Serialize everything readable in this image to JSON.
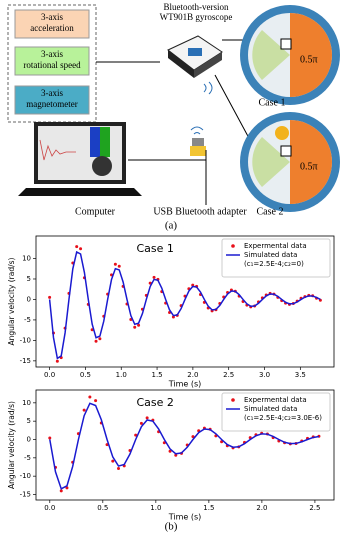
{
  "figure_a": {
    "sensors": [
      [
        "3-axis",
        "acceleration"
      ],
      [
        "3-axis",
        "rotational speed"
      ],
      [
        "3-axis",
        "magnetometer"
      ]
    ],
    "device_title": [
      "Bluetooth-version",
      "WT901B gyroscope"
    ],
    "angle_labels": [
      "0.5π",
      "0.5π"
    ],
    "case_labels": [
      "Case 1",
      "Case 2"
    ],
    "computer_label": "Computer",
    "adapter_label": "USB Bluetooth adapter",
    "caption": "(a)"
  },
  "caption_b": "(b)",
  "chart_data": [
    {
      "type": "line",
      "title": "Case 1",
      "x_label": "Time (s)",
      "y_label": "Angular velocity (rad/s)",
      "x": [
        0,
        0.054,
        0.108,
        0.162,
        0.216,
        0.27,
        0.324,
        0.378,
        0.432,
        0.486,
        0.54,
        0.594,
        0.648,
        0.702,
        0.756,
        0.81,
        0.864,
        0.918,
        0.972,
        1.026,
        1.08,
        1.134,
        1.188,
        1.242,
        1.296,
        1.35,
        1.404,
        1.458,
        1.512,
        1.566,
        1.62,
        1.674,
        1.728,
        1.782,
        1.836,
        1.89,
        1.944,
        1.998,
        2.052,
        2.106,
        2.16,
        2.214,
        2.268,
        2.322,
        2.376,
        2.43,
        2.484,
        2.538,
        2.592,
        2.646,
        2.7,
        2.754,
        2.808,
        2.862,
        2.916,
        2.97,
        3.024,
        3.078,
        3.132,
        3.186,
        3.24,
        3.294,
        3.348,
        3.402,
        3.456,
        3.51,
        3.564,
        3.618,
        3.672,
        3.726,
        3.78
      ],
      "series": [
        {
          "name": "Expermental data",
          "color": "#e8101a",
          "style": "points",
          "values": [
            0.5,
            -8.2,
            -15.1,
            -14.2,
            -7.0,
            1.5,
            8.9,
            12.9,
            12.4,
            5.3,
            -1.2,
            -7.4,
            -10.2,
            -9.6,
            -4.1,
            1.3,
            6.0,
            8.6,
            8.1,
            3.2,
            -1.1,
            -4.9,
            -6.8,
            -6.3,
            -2.4,
            1.0,
            4.0,
            5.4,
            4.9,
            1.9,
            -0.9,
            -3.2,
            -4.3,
            -3.9,
            -1.5,
            0.8,
            2.6,
            3.5,
            3.2,
            1.2,
            -0.7,
            -2.1,
            -2.8,
            -2.5,
            -1.0,
            0.6,
            1.7,
            2.3,
            2.0,
            0.8,
            -0.5,
            -1.4,
            -1.8,
            -1.6,
            -0.6,
            0.4,
            1.1,
            1.5,
            1.3,
            0.5,
            -0.3,
            -0.9,
            -1.2,
            -1.0,
            -0.4,
            0.3,
            0.7,
            1.0,
            0.9,
            0.3,
            -0.2
          ]
        },
        {
          "name": "Simulated data",
          "note": "(c₁=2.5E-4;c₂=0)",
          "color": "#1a1ad0",
          "style": "line",
          "values": [
            0,
            -9.29,
            -14.39,
            -13.78,
            -8.16,
            0,
            7.49,
            11.59,
            11.11,
            6.57,
            0,
            -6.03,
            -9.34,
            -8.95,
            -5.3,
            0,
            4.86,
            7.52,
            7.21,
            4.27,
            0,
            -3.92,
            -6.06,
            -5.8,
            -3.44,
            0,
            3.15,
            4.89,
            4.68,
            2.77,
            0,
            -2.54,
            -3.94,
            -3.77,
            -2.23,
            0,
            2.05,
            3.17,
            3.03,
            1.8,
            0,
            -1.65,
            -2.55,
            -2.44,
            -1.45,
            0,
            1.33,
            2.05,
            1.97,
            1.16,
            0,
            -1.07,
            -1.65,
            -1.59,
            -0.94,
            0,
            0.86,
            1.33,
            1.27,
            0.76,
            0,
            -0.69,
            -1.07,
            -1.03,
            -0.61,
            0,
            0.56,
            0.87,
            0.83,
            0.49,
            0
          ]
        }
      ],
      "xlim": [
        -0.19,
        3.97
      ],
      "ylim": [
        -16.5,
        15.5
      ],
      "xticks": [
        {
          "value": 0,
          "label": "0.0"
        },
        {
          "value": 0.5,
          "label": "0.5"
        },
        {
          "value": 1,
          "label": "1.0"
        },
        {
          "value": 1.5,
          "label": "1.5"
        },
        {
          "value": 2,
          "label": "2.0"
        },
        {
          "value": 2.5,
          "label": "2.5"
        },
        {
          "value": 3,
          "label": "3.0"
        },
        {
          "value": 3.5,
          "label": "3.5"
        }
      ],
      "yticks": [
        -15,
        -10,
        -5,
        0,
        5,
        10
      ],
      "legend": "upper right"
    },
    {
      "type": "line",
      "title": "Case 2",
      "x_label": "Time (s)",
      "y_label": "Angular velocity (rad/s)",
      "x": [
        0,
        0.054,
        0.108,
        0.162,
        0.216,
        0.27,
        0.324,
        0.378,
        0.432,
        0.486,
        0.54,
        0.594,
        0.648,
        0.702,
        0.756,
        0.81,
        0.864,
        0.918,
        0.972,
        1.026,
        1.08,
        1.134,
        1.188,
        1.242,
        1.296,
        1.35,
        1.404,
        1.458,
        1.512,
        1.566,
        1.62,
        1.674,
        1.728,
        1.782,
        1.836,
        1.89,
        1.944,
        1.998,
        2.052,
        2.106,
        2.16,
        2.214,
        2.268,
        2.322,
        2.376,
        2.43,
        2.484,
        2.538
      ],
      "series": [
        {
          "name": "Expermental data",
          "color": "#e8101a",
          "style": "points",
          "values": [
            0.4,
            -7.6,
            -14.0,
            -13.2,
            -6.2,
            1.6,
            8.0,
            11.6,
            10.6,
            4.5,
            -1.4,
            -5.9,
            -7.9,
            -7.2,
            -3.0,
            1.2,
            4.4,
            5.9,
            5.3,
            2.1,
            -0.9,
            -3.2,
            -4.3,
            -3.8,
            -1.5,
            0.8,
            2.4,
            3.1,
            2.8,
            1.0,
            -0.6,
            -1.7,
            -2.3,
            -2.0,
            -0.8,
            0.5,
            1.3,
            1.7,
            1.5,
            0.5,
            -0.4,
            -0.9,
            -1.2,
            -1.1,
            -0.4,
            0.3,
            0.7,
            0.9
          ]
        },
        {
          "name": "Simulated data",
          "note": "(c₁=2.5E-4;c₂=3.0E-6)",
          "color": "#1a1ad0",
          "style": "line",
          "values": [
            0,
            -8.84,
            -13.45,
            -12.64,
            -7.34,
            0,
            6.49,
            9.86,
            9.27,
            5.39,
            0,
            -4.76,
            -7.24,
            -6.81,
            -3.96,
            0,
            3.49,
            5.32,
            4.99,
            2.9,
            0,
            -2.56,
            -3.9,
            -3.67,
            -2.13,
            0,
            1.88,
            2.86,
            2.69,
            1.56,
            0,
            -1.38,
            -2.1,
            -1.98,
            -1.15,
            0,
            1.01,
            1.54,
            1.45,
            0.84,
            0,
            -0.75,
            -1.13,
            -1.07,
            -0.62,
            0,
            0.55,
            0.83
          ]
        }
      ],
      "xlim": [
        -0.13,
        2.68
      ],
      "ylim": [
        -16.5,
        13.5
      ],
      "xticks": [
        {
          "value": 0,
          "label": "0.0"
        },
        {
          "value": 0.5,
          "label": "0.5"
        },
        {
          "value": 1,
          "label": "1.0"
        },
        {
          "value": 1.5,
          "label": "1.5"
        },
        {
          "value": 2,
          "label": "2.0"
        },
        {
          "value": 2.5,
          "label": "2.5"
        }
      ],
      "yticks": [
        -15,
        -10,
        -5,
        0,
        5,
        10
      ],
      "legend": "upper right"
    }
  ]
}
